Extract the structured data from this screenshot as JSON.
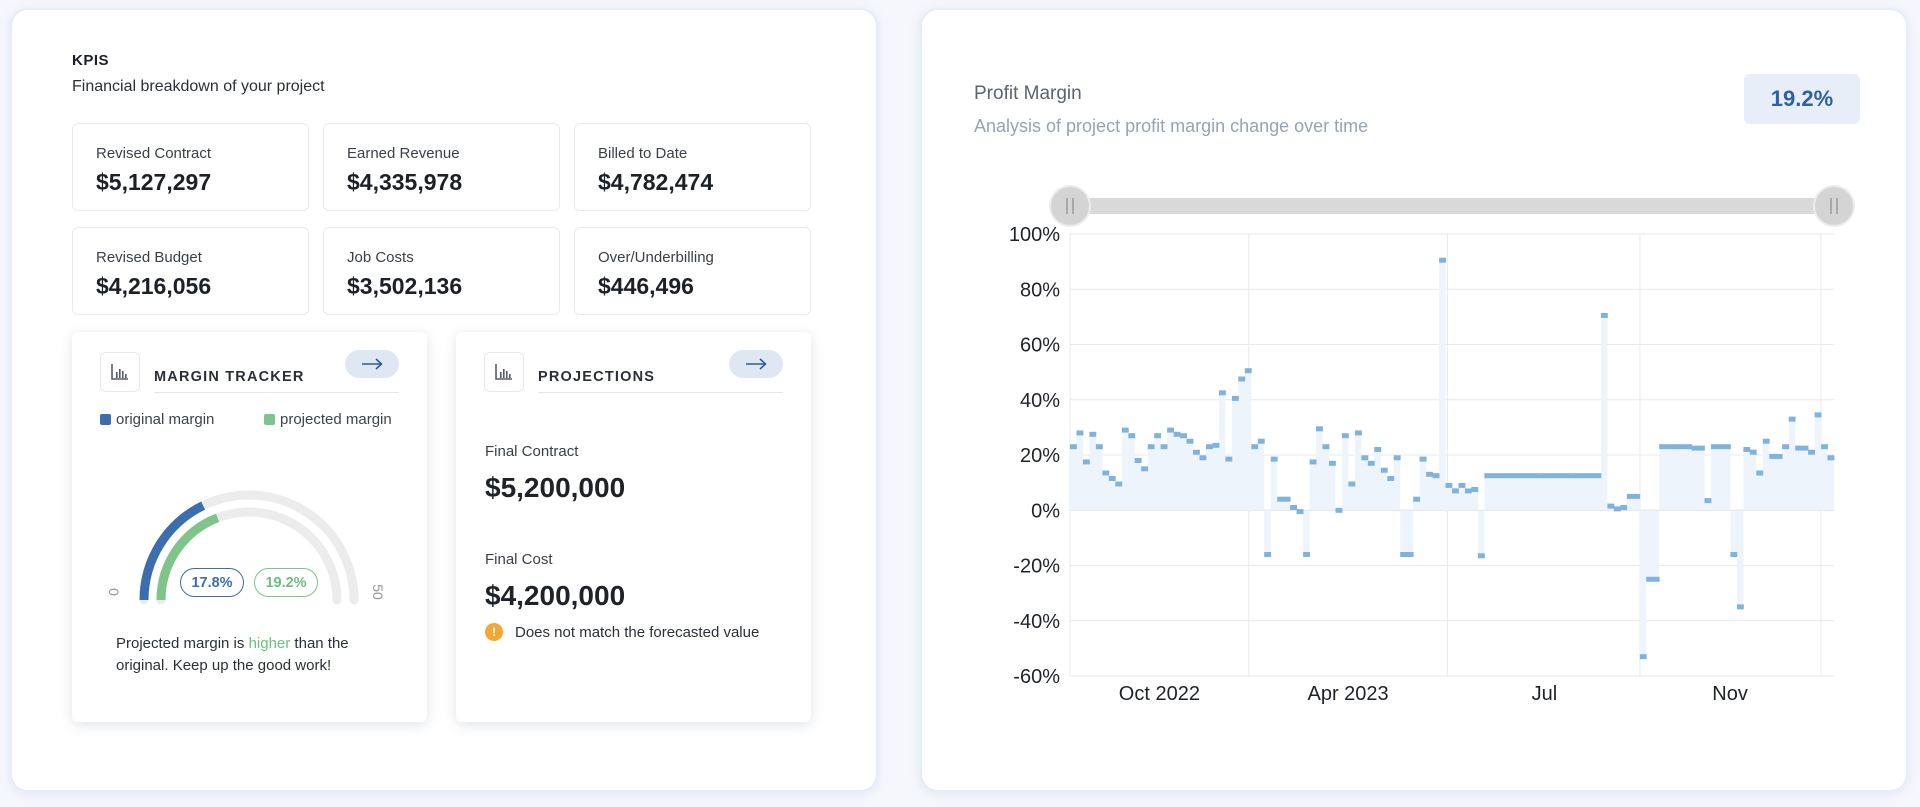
{
  "kpis": {
    "title": "KPIS",
    "subtitle": "Financial breakdown of your project",
    "items": [
      {
        "label": "Revised Contract",
        "value": "$5,127,297"
      },
      {
        "label": "Earned Revenue",
        "value": "$4,335,978"
      },
      {
        "label": "Billed to Date",
        "value": "$4,782,474"
      },
      {
        "label": "Revised Budget",
        "value": "$4,216,056"
      },
      {
        "label": "Job Costs",
        "value": "$3,502,136"
      },
      {
        "label": "Over/Underbilling",
        "value": "$446,496"
      }
    ]
  },
  "margin_tracker": {
    "title": "MARGIN TRACKER",
    "legend": [
      {
        "label": "original margin",
        "color": "#3c6dae"
      },
      {
        "label": "projected margin",
        "color": "#7fc48a"
      }
    ],
    "gauge": {
      "min_label": "0",
      "max_label": "50",
      "min": 0,
      "max": 50,
      "original_value": 17.8,
      "projected_value": 19.2,
      "original_label": "17.8%",
      "projected_label": "19.2%"
    },
    "message_prefix": "Projected margin is ",
    "message_highlight": "higher",
    "message_suffix": " than the original. Keep up the good work!"
  },
  "projections": {
    "title": "PROJECTIONS",
    "final_contract_label": "Final Contract",
    "final_contract_value": "$5,200,000",
    "final_cost_label": "Final Cost",
    "final_cost_value": "$4,200,000",
    "warning_text": "Does not match the forecasted value",
    "warning_color": "#f3a734"
  },
  "profit_margin": {
    "title": "Profit Margin",
    "subtitle": "Analysis of project profit margin change over time",
    "current_value": "19.2%"
  },
  "chart_data": {
    "type": "line",
    "step": true,
    "fill": true,
    "series_color": "#7fb3dd",
    "fill_color": "#eef4fb",
    "ylim": [
      -60,
      100
    ],
    "yticks": [
      -60,
      -40,
      -20,
      0,
      20,
      40,
      60,
      80,
      100
    ],
    "ytick_labels": [
      "-60%",
      "-40%",
      "-20%",
      "0%",
      "20%",
      "40%",
      "60%",
      "80%",
      "100%"
    ],
    "xlim": [
      0,
      1
    ],
    "xtick_positions": [
      0.117,
      0.364,
      0.621,
      0.864
    ],
    "xtick_labels": [
      "Oct 2022",
      "Apr 2023",
      "Jul",
      "Nov"
    ],
    "gridlines_x": [
      0,
      0.234,
      0.494,
      0.746,
      0.983
    ],
    "grid": true,
    "range_slider": {
      "start": 0,
      "end": 1
    },
    "values": [
      23,
      28,
      17.5,
      27.5,
      23,
      13.5,
      11.5,
      9.5,
      29,
      27,
      18,
      15,
      23,
      27,
      23,
      29,
      27.5,
      27,
      25,
      21,
      19,
      23,
      23.5,
      42.5,
      18.5,
      40.5,
      47.5,
      50.5,
      23,
      25,
      -16,
      18.5,
      4,
      4,
      1,
      -0.5,
      -16,
      17.5,
      29.5,
      23,
      17,
      0,
      27,
      9.5,
      28,
      19,
      17,
      22,
      14.5,
      11.5,
      19,
      -16,
      -16,
      4,
      18.5,
      13,
      12.5,
      90.5,
      9,
      7,
      9,
      7,
      7.5,
      -16.5,
      12.5,
      12.5,
      12.5,
      12.5,
      12.5,
      12.5,
      12.5,
      12.5,
      12.5,
      12.5,
      12.5,
      12.5,
      12.5,
      12.5,
      12.5,
      12.5,
      12.5,
      12.5,
      70.5,
      1.5,
      0.5,
      1,
      5,
      5,
      -53,
      -25,
      -25,
      23,
      23,
      23,
      23,
      23,
      22.5,
      22.5,
      3.5,
      23,
      23,
      23,
      -16,
      -35,
      22,
      21,
      13.5,
      25,
      19.5,
      19.5,
      23,
      33,
      22.5,
      22.5,
      21,
      34.5,
      23,
      19
    ]
  }
}
